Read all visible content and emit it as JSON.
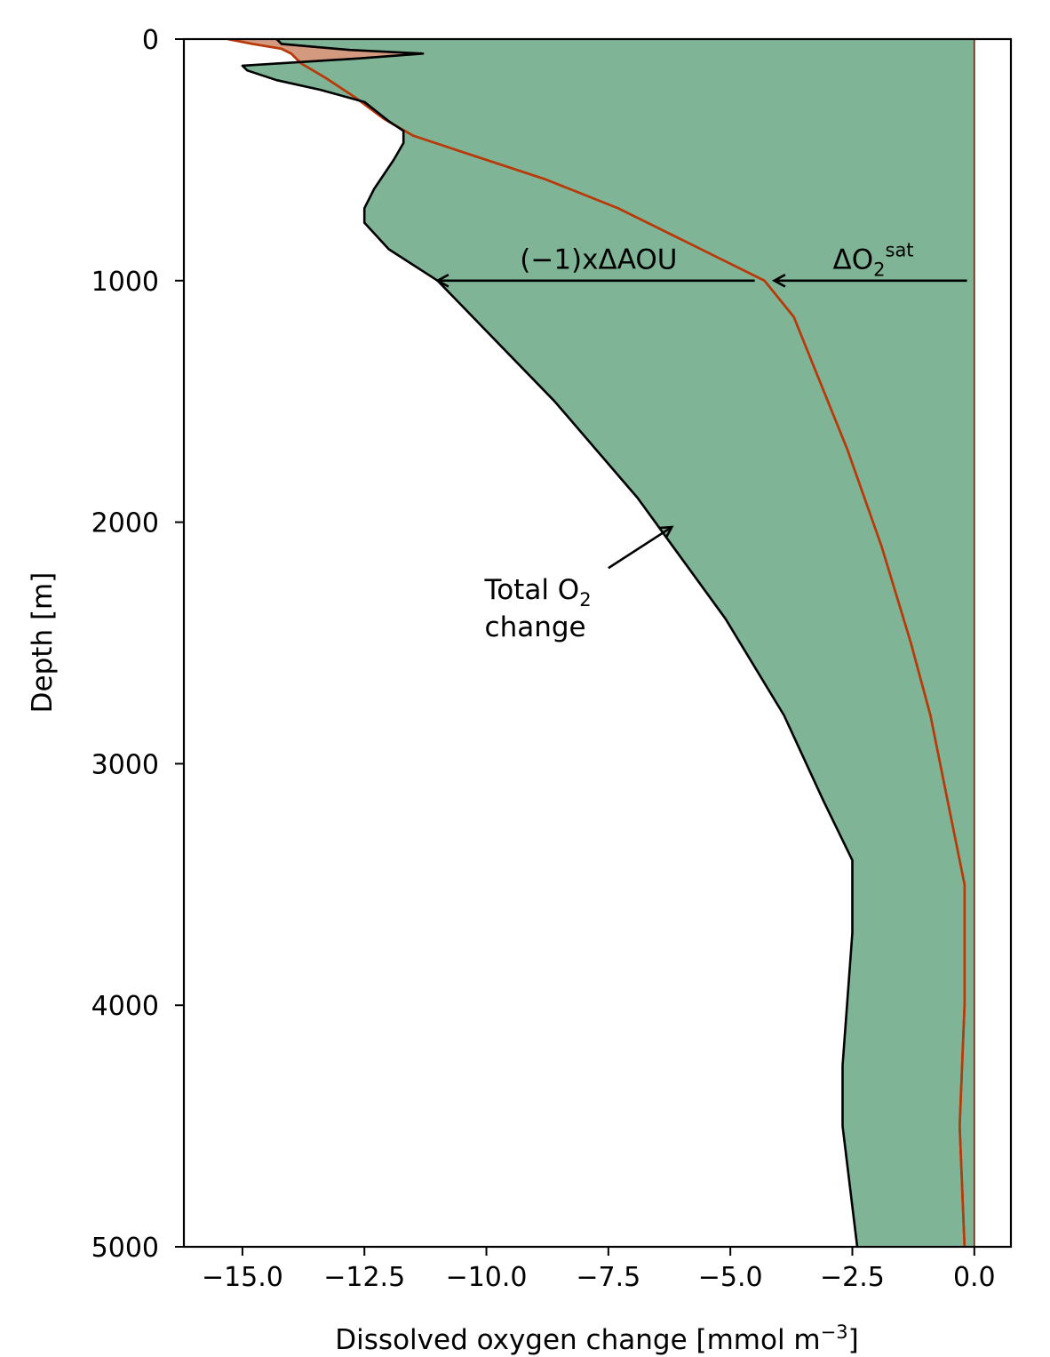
{
  "chart_data": {
    "type": "area",
    "xlabel": "Dissolved oxygen change [mmol m",
    "xlabel_sup": "−3",
    "xlabel_end": "]",
    "ylabel": "Depth [m]",
    "xlim": [
      -16.2,
      0.75
    ],
    "ylim": [
      5000,
      0
    ],
    "y_inverted": true,
    "grid": false,
    "x_ticks": [
      -15.0,
      -12.5,
      -10.0,
      -7.5,
      -5.0,
      -2.5,
      0.0
    ],
    "x_tick_labels": [
      "−15.0",
      "−12.5",
      "−10.0",
      "−7.5",
      "−5.0",
      "−2.5",
      "0.0"
    ],
    "y_ticks": [
      0,
      1000,
      2000,
      3000,
      4000,
      5000
    ],
    "y_tick_labels": [
      "0",
      "1000",
      "2000",
      "3000",
      "4000",
      "5000"
    ],
    "series": [
      {
        "name": "ΔO2sat",
        "color": "#b83a0a",
        "fill": "#d39a80",
        "points": [
          [
            -15.3,
            0
          ],
          [
            -14.8,
            20
          ],
          [
            -14.2,
            40
          ],
          [
            -14.0,
            60
          ],
          [
            -13.8,
            100
          ],
          [
            -13.3,
            160
          ],
          [
            -12.7,
            240
          ],
          [
            -12.1,
            330
          ],
          [
            -11.5,
            400
          ],
          [
            -10.3,
            480
          ],
          [
            -8.8,
            580
          ],
          [
            -7.3,
            700
          ],
          [
            -5.8,
            850
          ],
          [
            -4.3,
            1000
          ],
          [
            -3.7,
            1150
          ],
          [
            -3.2,
            1400
          ],
          [
            -2.6,
            1700
          ],
          [
            -1.9,
            2100
          ],
          [
            -1.3,
            2500
          ],
          [
            -0.9,
            2800
          ],
          [
            -0.5,
            3200
          ],
          [
            -0.2,
            3500
          ],
          [
            -0.2,
            4000
          ],
          [
            -0.3,
            4500
          ],
          [
            -0.2,
            5000
          ]
        ]
      },
      {
        "name": "Total O2 change",
        "color": "#000000",
        "fill": "#7fb596",
        "points": [
          [
            -14.3,
            0
          ],
          [
            -14.2,
            20
          ],
          [
            -12.8,
            45
          ],
          [
            -11.3,
            60
          ],
          [
            -12.6,
            80
          ],
          [
            -15.0,
            110
          ],
          [
            -14.9,
            130
          ],
          [
            -14.3,
            170
          ],
          [
            -13.4,
            210
          ],
          [
            -12.5,
            260
          ],
          [
            -12.0,
            340
          ],
          [
            -11.7,
            380
          ],
          [
            -11.7,
            430
          ],
          [
            -11.9,
            500
          ],
          [
            -12.3,
            620
          ],
          [
            -12.5,
            700
          ],
          [
            -12.5,
            760
          ],
          [
            -12.0,
            870
          ],
          [
            -11.0,
            1000
          ],
          [
            -9.8,
            1250
          ],
          [
            -8.6,
            1500
          ],
          [
            -6.9,
            1900
          ],
          [
            -5.1,
            2400
          ],
          [
            -3.9,
            2800
          ],
          [
            -3.1,
            3150
          ],
          [
            -2.5,
            3400
          ],
          [
            -2.5,
            3700
          ],
          [
            -2.7,
            4250
          ],
          [
            -2.7,
            4500
          ],
          [
            -2.4,
            5000
          ]
        ]
      }
    ],
    "annotations": [
      {
        "text": "(−1)xΔAOU",
        "x": -7.7,
        "y": 900,
        "arrow_from": [
          -4.5,
          1000
        ],
        "arrow_to": [
          -11.0,
          1000
        ]
      },
      {
        "text": "ΔO",
        "sub": "2",
        "sup": "sat",
        "x": -2.9,
        "y": 900,
        "arrow_from": [
          -0.15,
          1000
        ],
        "arrow_to": [
          -4.1,
          1000
        ]
      },
      {
        "text_line1": "Total O",
        "sub": "2",
        "text_line2": "change",
        "x": -10.0,
        "y": 2300,
        "arrow_from": [
          -7.5,
          2190
        ],
        "arrow_to": [
          -6.2,
          2020
        ]
      }
    ]
  }
}
